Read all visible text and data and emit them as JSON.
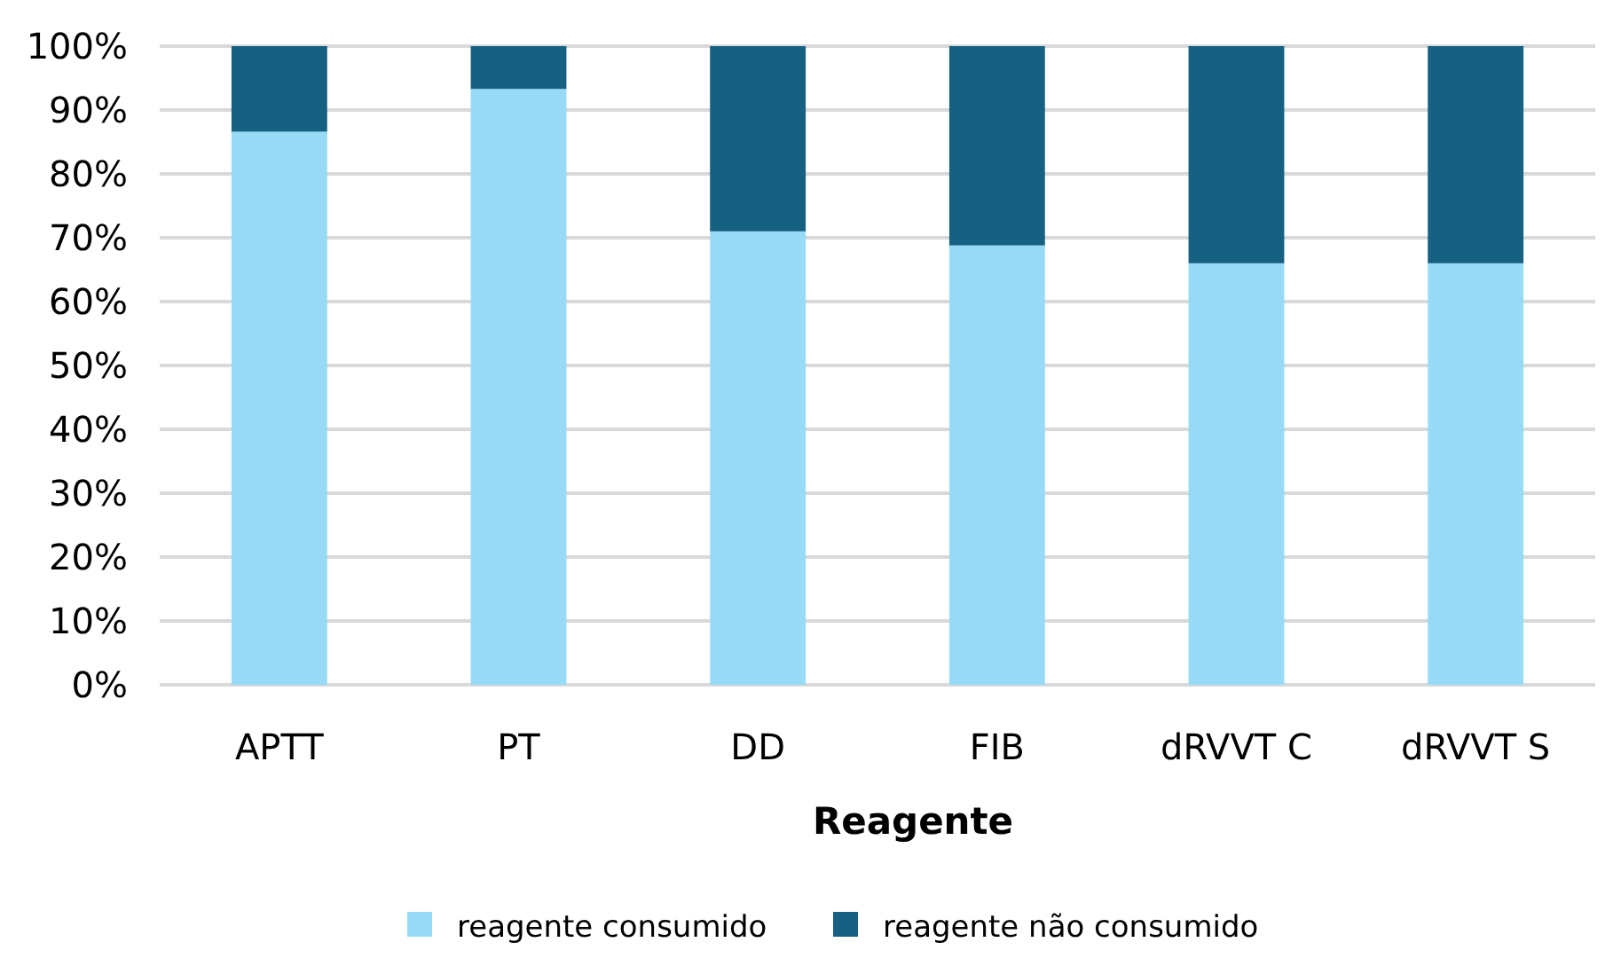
{
  "chart_data": {
    "type": "bar",
    "stacked": true,
    "xlabel": "Reagente",
    "categories": [
      "APTT",
      "PT",
      "DD",
      "FIB",
      "dRVVT C",
      "dRVVT S"
    ],
    "series": [
      {
        "name": "reagente consumido",
        "color": "#97dbf6",
        "values": [
          86.6,
          93.3,
          71,
          68.8,
          66,
          66
        ]
      },
      {
        "name": "reagente não consumido",
        "color": "#166082",
        "values": [
          13.4,
          6.7,
          29,
          31.2,
          34,
          34
        ]
      }
    ],
    "ylim": [
      0,
      100
    ],
    "yticks": [
      {
        "value": 0,
        "label": "0%"
      },
      {
        "value": 10,
        "label": "10%"
      },
      {
        "value": 20,
        "label": "20%"
      },
      {
        "value": 30,
        "label": "30%"
      },
      {
        "value": 40,
        "label": "40%"
      },
      {
        "value": 50,
        "label": "50%"
      },
      {
        "value": 60,
        "label": "60%"
      },
      {
        "value": 70,
        "label": "70%"
      },
      {
        "value": 80,
        "label": "80%"
      },
      {
        "value": 90,
        "label": "90%"
      },
      {
        "value": 100,
        "label": "100%"
      }
    ],
    "grid": "y",
    "legend": "bottom"
  }
}
